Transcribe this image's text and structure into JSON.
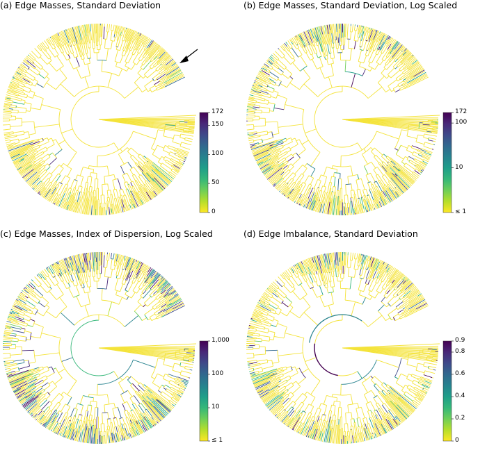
{
  "palette": {
    "tree_default": "#f4e33a",
    "viridis": [
      "#fde725",
      "#b5de2b",
      "#6ece58",
      "#35b779",
      "#1f9e89",
      "#26828e",
      "#31688e",
      "#3e4989",
      "#482878",
      "#440154"
    ]
  },
  "panels": [
    {
      "title": "(a)  Edge Masses, Standard Deviation",
      "arrow": true,
      "colorbar": {
        "ticks": [
          {
            "label": "172",
            "frac": 1.0
          },
          {
            "label": "150",
            "frac": 0.872
          },
          {
            "label": "100",
            "frac": 0.581
          },
          {
            "label": "50",
            "frac": 0.291
          },
          {
            "label": "0",
            "frac": 0.0
          }
        ]
      },
      "highlight_level": 0.15
    },
    {
      "title": "(b)  Edge Masses, Standard Deviation, Log Scaled",
      "arrow": false,
      "colorbar": {
        "ticks": [
          {
            "label": "172",
            "frac": 1.0
          },
          {
            "label": "100",
            "frac": 0.895
          },
          {
            "label": "10",
            "frac": 0.447
          },
          {
            "label": "≤ 1",
            "frac": 0.0
          }
        ]
      },
      "highlight_level": 0.35
    },
    {
      "title": "(c)  Edge Masses, Index of Dispersion, Log Scaled",
      "arrow": false,
      "colorbar": {
        "ticks": [
          {
            "label": "1,000",
            "frac": 1.0
          },
          {
            "label": "100",
            "frac": 0.667
          },
          {
            "label": "10",
            "frac": 0.333
          },
          {
            "label": "≤ 1",
            "frac": 0.0
          }
        ]
      },
      "highlight_level": 0.5
    },
    {
      "title": "(d)  Edge Imbalance, Standard Deviation",
      "arrow": false,
      "colorbar": {
        "ticks": [
          {
            "label": "0.9",
            "frac": 1.0
          },
          {
            "label": "0.8",
            "frac": 0.889
          },
          {
            "label": "0.6",
            "frac": 0.667
          },
          {
            "label": "0.4",
            "frac": 0.444
          },
          {
            "label": "0.2",
            "frac": 0.222
          },
          {
            "label": "0",
            "frac": 0.0
          }
        ]
      },
      "highlight_level": 0.25
    }
  ]
}
